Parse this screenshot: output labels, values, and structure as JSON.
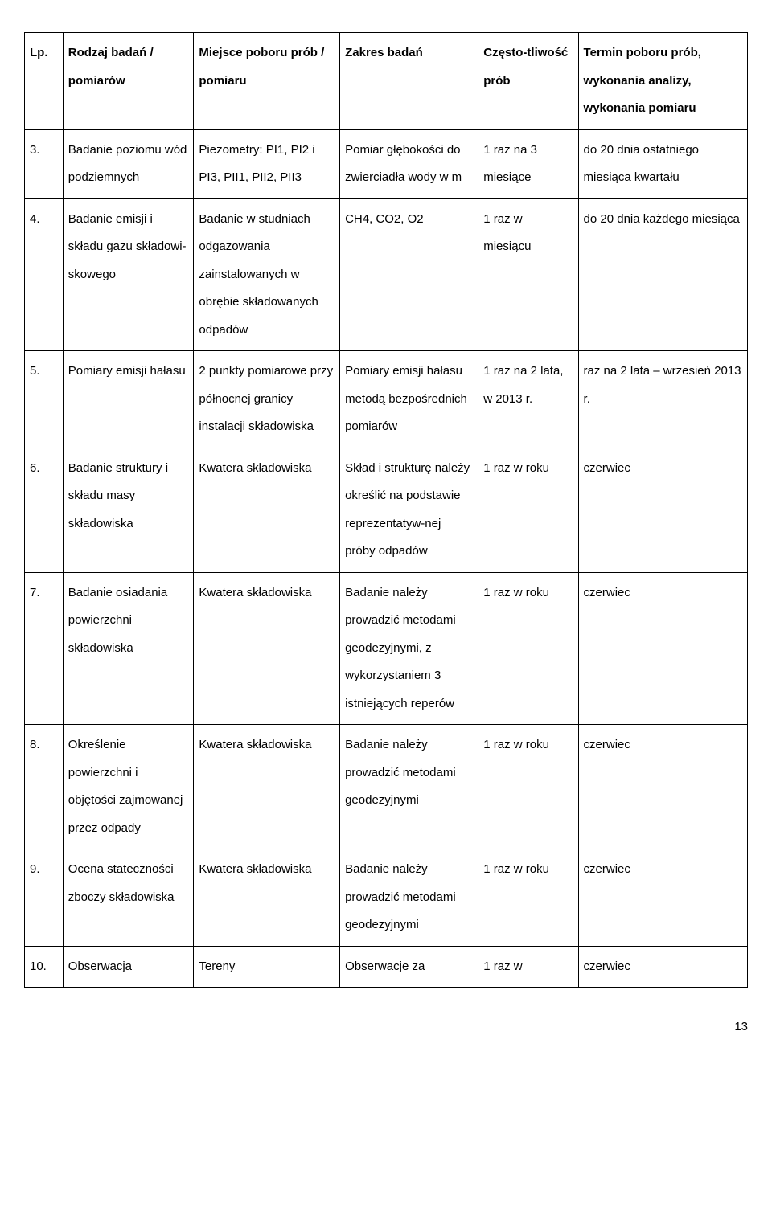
{
  "header": {
    "lp": "Lp.",
    "rodzaj": "Rodzaj badań / pomiarów",
    "miejsce": "Miejsce poboru prób / pomiaru",
    "zakres": "Zakres badań",
    "czesto": "Często-tliwość prób",
    "termin": "Termin poboru prób, wykonania analizy, wykonania pomiaru"
  },
  "rows": [
    {
      "lp": "3.",
      "rodzaj": "Badanie poziomu wód podziemnych",
      "miejsce": "Piezometry: PI1, PI2 i PI3, PII1, PII2, PII3",
      "zakres": "Pomiar głębokości do zwierciadła wody w m",
      "czesto": "1 raz na 3 miesiące",
      "termin": "do 20 dnia ostatniego miesiąca kwartału"
    },
    {
      "lp": "4.",
      "rodzaj": "Badanie emisji i składu gazu składowi-skowego",
      "miejsce": "Badanie w studniach odgazowania zainstalowanych w obrębie składowanych odpadów",
      "zakres": "CH4, CO2, O2",
      "czesto": "1 raz w miesiącu",
      "termin": "do 20 dnia każdego miesiąca"
    },
    {
      "lp": "5.",
      "rodzaj": "Pomiary emisji hałasu",
      "miejsce": "2 punkty pomiarowe przy północnej granicy instalacji składowiska",
      "zakres": "Pomiary emisji hałasu metodą bezpośrednich pomiarów",
      "czesto": "1 raz na 2 lata, w 2013 r.",
      "termin": "raz na 2 lata – wrzesień 2013 r."
    },
    {
      "lp": "6.",
      "rodzaj": "Badanie struktury i składu masy składowiska",
      "miejsce": "Kwatera składowiska",
      "zakres": "Skład i strukturę należy określić na podstawie reprezentatyw-nej próby odpadów",
      "czesto": "1 raz w roku",
      "termin": "czerwiec"
    },
    {
      "lp": "7.",
      "rodzaj": "Badanie osiadania powierzchni składowiska",
      "miejsce": "Kwatera składowiska",
      "zakres": "Badanie należy prowadzić metodami geodezyjnymi, z wykorzystaniem 3 istniejących reperów",
      "czesto": "1 raz w roku",
      "termin": "czerwiec"
    },
    {
      "lp": "8.",
      "rodzaj": "Określenie powierzchni i objętości zajmowanej przez odpady",
      "miejsce": "Kwatera składowiska",
      "zakres": "Badanie należy prowadzić metodami geodezyjnymi",
      "czesto": "1 raz w roku",
      "termin": "czerwiec"
    },
    {
      "lp": "9.",
      "rodzaj": "Ocena stateczności zboczy składowiska",
      "miejsce": "Kwatera składowiska",
      "zakres": "Badanie należy prowadzić metodami geodezyjnymi",
      "czesto": "1 raz w roku",
      "termin": "czerwiec"
    },
    {
      "lp": "10.",
      "rodzaj": "Obserwacja",
      "miejsce": "Tereny",
      "zakres": "Obserwacje za",
      "czesto": "1 raz w",
      "termin": "czerwiec"
    }
  ],
  "pageNumber": "13"
}
